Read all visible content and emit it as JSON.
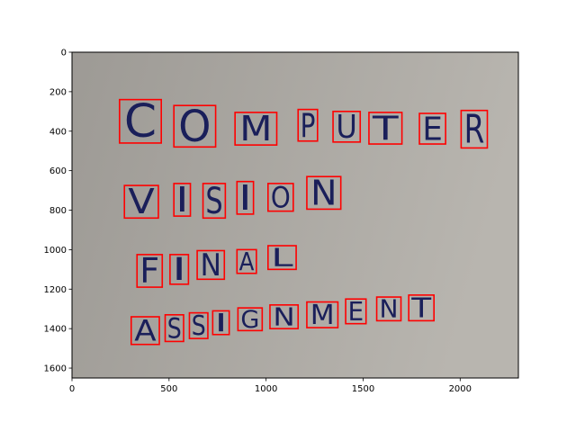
{
  "figure": {
    "type": "image-with-bounding-boxes",
    "background_color": "#ffffff",
    "image_tint": [
      "#9d9a95",
      "#b8b5af"
    ],
    "ink_color": "#1a1f5a",
    "box_color": "#ff0000"
  },
  "chart_data": {
    "type": "image",
    "title": "",
    "xlabel": "",
    "ylabel": "",
    "xlim": [
      0,
      2300
    ],
    "ylim": [
      1650,
      0
    ],
    "x_ticks": [
      0,
      500,
      1000,
      1500,
      2000
    ],
    "x_tick_labels": [
      "0",
      "500",
      "1000",
      "1500",
      "2000"
    ],
    "y_ticks": [
      0,
      200,
      400,
      600,
      800,
      1000,
      1200,
      1400,
      1600
    ],
    "y_tick_labels": [
      "0",
      "200",
      "400",
      "600",
      "800",
      "1000",
      "1200",
      "1400",
      "1600"
    ],
    "boxes": [
      {
        "letter": "C",
        "x0": 245,
        "y0": 240,
        "x1": 460,
        "y1": 460
      },
      {
        "letter": "O",
        "x0": 525,
        "y0": 270,
        "x1": 740,
        "y1": 480
      },
      {
        "letter": "M",
        "x0": 840,
        "y0": 305,
        "x1": 1055,
        "y1": 470
      },
      {
        "letter": "P",
        "x0": 1165,
        "y0": 290,
        "x1": 1265,
        "y1": 450
      },
      {
        "letter": "U",
        "x0": 1345,
        "y0": 300,
        "x1": 1485,
        "y1": 455
      },
      {
        "letter": "T",
        "x0": 1530,
        "y0": 305,
        "x1": 1700,
        "y1": 465
      },
      {
        "letter": "E",
        "x0": 1790,
        "y0": 310,
        "x1": 1925,
        "y1": 465
      },
      {
        "letter": "R",
        "x0": 2005,
        "y0": 295,
        "x1": 2140,
        "y1": 485
      },
      {
        "letter": "V",
        "x0": 270,
        "y0": 675,
        "x1": 445,
        "y1": 840
      },
      {
        "letter": "I",
        "x0": 525,
        "y0": 665,
        "x1": 610,
        "y1": 830
      },
      {
        "letter": "S",
        "x0": 675,
        "y0": 665,
        "x1": 790,
        "y1": 840
      },
      {
        "letter": "I",
        "x0": 850,
        "y0": 655,
        "x1": 935,
        "y1": 820
      },
      {
        "letter": "O",
        "x0": 1010,
        "y0": 665,
        "x1": 1140,
        "y1": 805
      },
      {
        "letter": "N",
        "x0": 1210,
        "y0": 630,
        "x1": 1385,
        "y1": 795
      },
      {
        "letter": "F",
        "x0": 335,
        "y0": 1025,
        "x1": 465,
        "y1": 1190
      },
      {
        "letter": "I",
        "x0": 505,
        "y0": 1025,
        "x1": 600,
        "y1": 1175
      },
      {
        "letter": "N",
        "x0": 645,
        "y0": 1005,
        "x1": 785,
        "y1": 1150
      },
      {
        "letter": "A",
        "x0": 850,
        "y0": 1000,
        "x1": 950,
        "y1": 1120
      },
      {
        "letter": "L",
        "x0": 1010,
        "y0": 980,
        "x1": 1155,
        "y1": 1100
      },
      {
        "letter": "A",
        "x0": 305,
        "y0": 1340,
        "x1": 450,
        "y1": 1480
      },
      {
        "letter": "S",
        "x0": 480,
        "y0": 1330,
        "x1": 575,
        "y1": 1465
      },
      {
        "letter": "S",
        "x0": 605,
        "y0": 1320,
        "x1": 700,
        "y1": 1450
      },
      {
        "letter": "I",
        "x0": 725,
        "y0": 1310,
        "x1": 810,
        "y1": 1430
      },
      {
        "letter": "G",
        "x0": 855,
        "y0": 1295,
        "x1": 980,
        "y1": 1410
      },
      {
        "letter": "N",
        "x0": 1020,
        "y0": 1280,
        "x1": 1165,
        "y1": 1400
      },
      {
        "letter": "M",
        "x0": 1210,
        "y0": 1265,
        "x1": 1370,
        "y1": 1395
      },
      {
        "letter": "E",
        "x0": 1410,
        "y0": 1250,
        "x1": 1515,
        "y1": 1375
      },
      {
        "letter": "N",
        "x0": 1570,
        "y0": 1240,
        "x1": 1695,
        "y1": 1360
      },
      {
        "letter": "T",
        "x0": 1735,
        "y0": 1230,
        "x1": 1865,
        "y1": 1360
      }
    ]
  }
}
